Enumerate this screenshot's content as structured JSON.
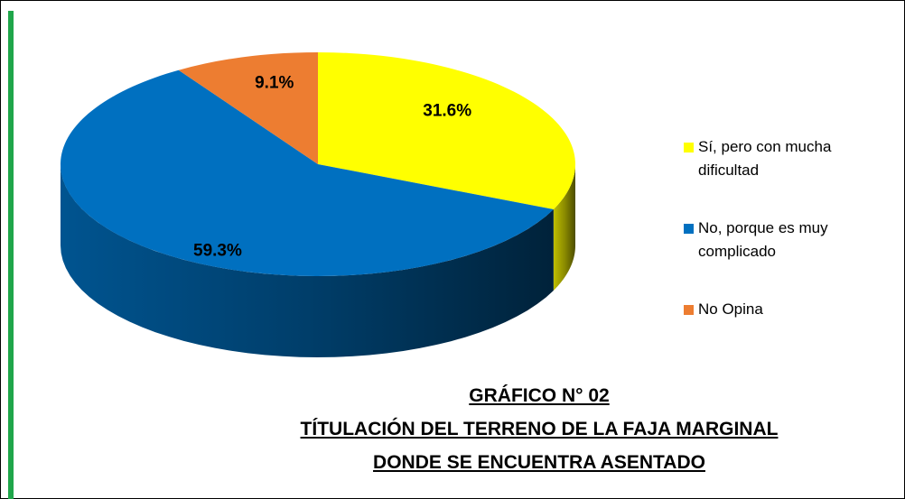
{
  "chart_data": {
    "type": "pie",
    "title": "GRÁFICO N° 02",
    "subtitle": "TÍTULACIÓN DEL TERRENO DE LA FAJA MARGINAL DONDE SE ENCUENTRA ASENTADO",
    "categories": [
      "Sí, pero con mucha dificultad",
      "No, porque es muy complicado",
      "No Opina"
    ],
    "values": [
      31.6,
      59.3,
      9.1
    ],
    "value_labels": [
      "31.6%",
      "59.3%",
      "9.1%"
    ],
    "colors": [
      "#ffff00",
      "#0070c0",
      "#ed7d31"
    ],
    "legend": "right"
  }
}
